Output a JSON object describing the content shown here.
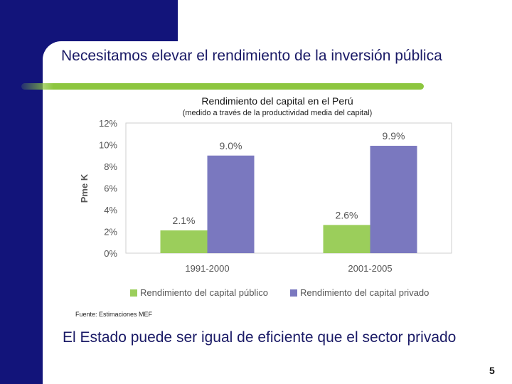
{
  "slide": {
    "title": "Necesitamos elevar el rendimiento de la inversión pública",
    "source": "Fuente: Estimaciones MEF",
    "conclusion": "El Estado puede ser igual de eficiente que el sector privado",
    "page_number": "5"
  },
  "colors": {
    "navy": "#12147a",
    "accent_green": "#8dc63f",
    "series_public": "#9bce5b",
    "series_private": "#7a78bf"
  },
  "chart_data": {
    "type": "bar",
    "title": "Rendimiento del capital en el Perú",
    "subtitle": "(medido a través de la productividad media del capital)",
    "ylabel": "Pme K",
    "xlabel": "",
    "categories": [
      "1991-2000",
      "2001-2005"
    ],
    "series": [
      {
        "name": "Rendimiento del capital público",
        "values": [
          2.1,
          2.6
        ],
        "labels": [
          "2.1%",
          "2.6%"
        ]
      },
      {
        "name": "Rendimiento del capital privado",
        "values": [
          9.0,
          9.9
        ],
        "labels": [
          "9.0%",
          "9.9%"
        ]
      }
    ],
    "ylim": [
      0,
      12
    ],
    "yticks": [
      0,
      2,
      4,
      6,
      8,
      10,
      12
    ],
    "ytick_labels": [
      "0%",
      "2%",
      "4%",
      "6%",
      "8%",
      "10%",
      "12%"
    ],
    "legend_position": "bottom"
  }
}
